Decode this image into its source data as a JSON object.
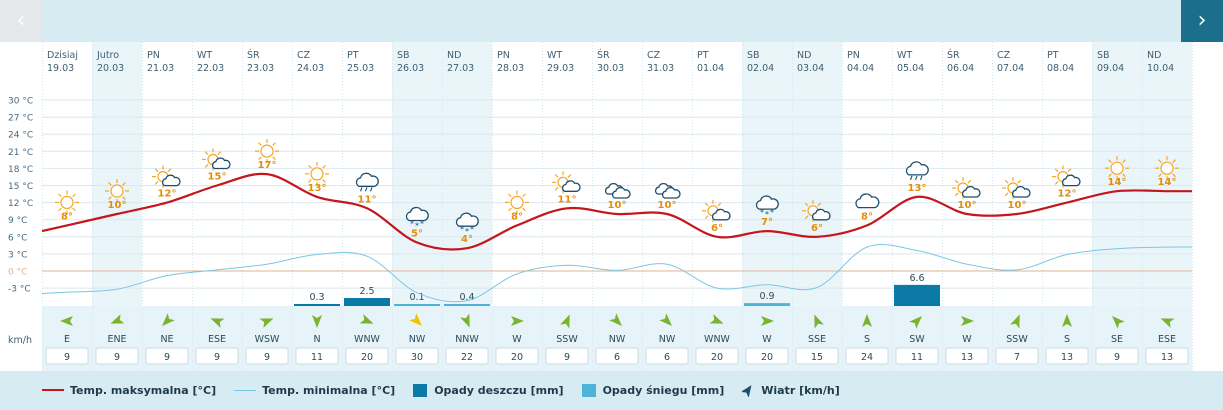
{
  "nav": {
    "prev_label": "‹",
    "next_label": "›"
  },
  "wind_unit_label": "km/h",
  "legend": {
    "max_temp": "Temp. maksymalna [°C]",
    "min_temp": "Temp. minimalna [°C]",
    "rain": "Opady deszczu [mm]",
    "snow": "Opady śniegu [mm]",
    "wind": "Wiatr [km/h]"
  },
  "colors": {
    "max_line": "#c4161c",
    "min_line": "#7cc6e2",
    "rain": "#0b7aa6",
    "snow": "#4fb3d9",
    "icon_sun": "#f5a623",
    "icon_cloud": "#1d4e6e",
    "weekend_band": "#eaf5fa",
    "wind_arrow": "#7ab32e",
    "wind_arrow_strong": "#f2c200",
    "zero_line": "#e2b38d"
  },
  "chart_data": {
    "type": "line",
    "days": [
      {
        "name": "Dzisiaj",
        "date": "19.03",
        "max": 8,
        "min": -3.7,
        "icon": "sun-icon",
        "wind_dir": "E",
        "wind_speed": 9,
        "rain": null,
        "snow": null,
        "weekend": false
      },
      {
        "name": "Jutro",
        "date": "20.03",
        "max": 10,
        "min": -3.2,
        "icon": "sun-icon",
        "wind_dir": "ENE",
        "wind_speed": 9,
        "rain": null,
        "snow": null,
        "weekend": true
      },
      {
        "name": "PN",
        "date": "21.03",
        "max": 12,
        "min": -0.8,
        "icon": "partly-sunny-icon",
        "wind_dir": "NE",
        "wind_speed": 9,
        "rain": null,
        "snow": null,
        "weekend": false
      },
      {
        "name": "WT",
        "date": "22.03",
        "max": 15,
        "min": 0.2,
        "icon": "partly-sunny-icon",
        "wind_dir": "ESE",
        "wind_speed": 9,
        "rain": null,
        "snow": null,
        "weekend": false
      },
      {
        "name": "ŚR",
        "date": "23.03",
        "max": 17,
        "min": 1.2,
        "icon": "sun-icon",
        "wind_dir": "WSW",
        "wind_speed": 9,
        "rain": null,
        "snow": null,
        "weekend": false
      },
      {
        "name": "CZ",
        "date": "24.03",
        "max": 13,
        "min": 2.9,
        "icon": "sun-icon",
        "wind_dir": "N",
        "wind_speed": 11,
        "rain": 0.3,
        "snow": null,
        "weekend": false
      },
      {
        "name": "PT",
        "date": "25.03",
        "max": 11,
        "min": 2.6,
        "icon": "rain-cloud-icon",
        "wind_dir": "WNW",
        "wind_speed": 20,
        "rain": 2.5,
        "snow": null,
        "weekend": false
      },
      {
        "name": "SB",
        "date": "26.03",
        "max": 5,
        "min": -3.8,
        "icon": "snow-cloud-icon",
        "wind_dir": "NW",
        "wind_speed": 30,
        "rain": null,
        "snow": 0.1,
        "weekend": true
      },
      {
        "name": "ND",
        "date": "27.03",
        "max": 4,
        "min": -5.2,
        "icon": "snow-cloud-icon",
        "wind_dir": "NNW",
        "wind_speed": 22,
        "rain": null,
        "snow": 0.4,
        "weekend": true
      },
      {
        "name": "PN",
        "date": "28.03",
        "max": 8,
        "min": -0.5,
        "icon": "sun-icon",
        "wind_dir": "W",
        "wind_speed": 20,
        "rain": null,
        "snow": null,
        "weekend": false
      },
      {
        "name": "WT",
        "date": "29.03",
        "max": 11,
        "min": 1.0,
        "icon": "partly-sunny-icon",
        "wind_dir": "SSW",
        "wind_speed": 9,
        "rain": null,
        "snow": null,
        "weekend": false
      },
      {
        "name": "ŚR",
        "date": "30.03",
        "max": 10,
        "min": 0.1,
        "icon": "cloudy-icon",
        "wind_dir": "NW",
        "wind_speed": 6,
        "rain": null,
        "snow": null,
        "weekend": false
      },
      {
        "name": "CZ",
        "date": "31.03",
        "max": 10,
        "min": 1.2,
        "icon": "cloudy-icon",
        "wind_dir": "NW",
        "wind_speed": 6,
        "rain": null,
        "snow": null,
        "weekend": false
      },
      {
        "name": "PT",
        "date": "01.04",
        "max": 6,
        "min": -3.0,
        "icon": "partly-sunny-icon",
        "wind_dir": "WNW",
        "wind_speed": 20,
        "rain": null,
        "snow": null,
        "weekend": false
      },
      {
        "name": "SB",
        "date": "02.04",
        "max": 7,
        "min": -2.4,
        "icon": "snow-cloud-icon",
        "wind_dir": "W",
        "wind_speed": 20,
        "rain": null,
        "snow": 0.9,
        "weekend": true
      },
      {
        "name": "ND",
        "date": "03.04",
        "max": 6,
        "min": -2.9,
        "icon": "partly-sunny-icon",
        "wind_dir": "SSE",
        "wind_speed": 15,
        "rain": null,
        "snow": null,
        "weekend": true
      },
      {
        "name": "PN",
        "date": "04.04",
        "max": 8,
        "min": 4.2,
        "icon": "cloud-icon",
        "wind_dir": "S",
        "wind_speed": 24,
        "rain": null,
        "snow": null,
        "weekend": false
      },
      {
        "name": "WT",
        "date": "05.04",
        "max": 13,
        "min": 3.6,
        "icon": "rain-cloud-icon",
        "wind_dir": "SW",
        "wind_speed": 11,
        "rain": 6.6,
        "snow": null,
        "weekend": false
      },
      {
        "name": "ŚR",
        "date": "06.04",
        "max": 10,
        "min": 1.2,
        "icon": "partly-sunny-icon",
        "wind_dir": "W",
        "wind_speed": 13,
        "rain": null,
        "snow": null,
        "weekend": false
      },
      {
        "name": "CZ",
        "date": "07.04",
        "max": 10,
        "min": 0.2,
        "icon": "partly-sunny-icon",
        "wind_dir": "SSW",
        "wind_speed": 7,
        "rain": null,
        "snow": null,
        "weekend": false
      },
      {
        "name": "PT",
        "date": "08.04",
        "max": 12,
        "min": 2.9,
        "icon": "partly-sunny-icon",
        "wind_dir": "S",
        "wind_speed": 13,
        "rain": null,
        "snow": null,
        "weekend": false
      },
      {
        "name": "SB",
        "date": "09.04",
        "max": 14,
        "min": 3.9,
        "icon": "sun-icon",
        "wind_dir": "SE",
        "wind_speed": 9,
        "rain": null,
        "snow": null,
        "weekend": true
      },
      {
        "name": "ND",
        "date": "10.04",
        "max": 14,
        "min": 4.2,
        "icon": "sun-icon",
        "wind_dir": "ESE",
        "wind_speed": 13,
        "rain": null,
        "snow": null,
        "weekend": true
      }
    ],
    "y_ticks": [
      {
        "value": 30,
        "label": "30 °C"
      },
      {
        "value": 27,
        "label": "27 °C"
      },
      {
        "value": 24,
        "label": "24 °C"
      },
      {
        "value": 21,
        "label": "21 °C"
      },
      {
        "value": 18,
        "label": "18 °C"
      },
      {
        "value": 15,
        "label": "15 °C"
      },
      {
        "value": 12,
        "label": "12 °C"
      },
      {
        "value": 9,
        "label": "9 °C"
      },
      {
        "value": 6,
        "label": "6 °C"
      },
      {
        "value": 3,
        "label": "3 °C"
      },
      {
        "value": 0,
        "label": "0 °C"
      },
      {
        "value": -3,
        "label": "-3 °C"
      }
    ],
    "ylim": [
      -6,
      32
    ],
    "grid": true,
    "legend_position": "bottom"
  }
}
